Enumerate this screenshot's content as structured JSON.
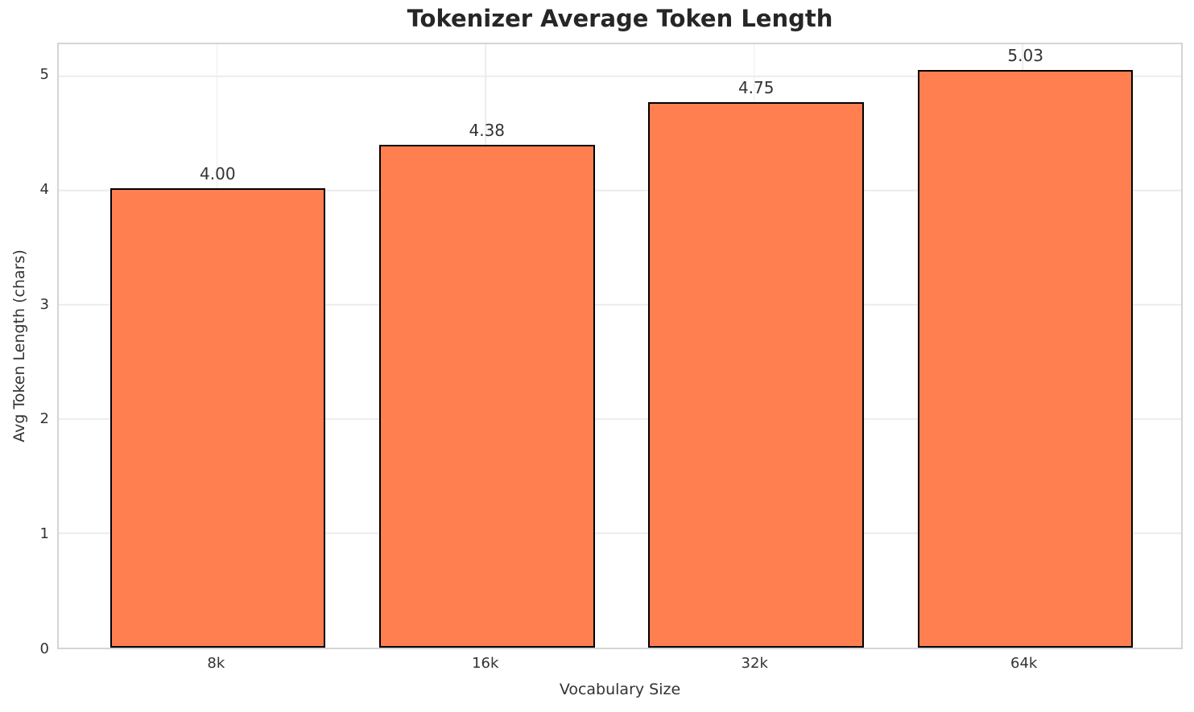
{
  "chart_data": {
    "type": "bar",
    "title": "Tokenizer Average Token Length",
    "xlabel": "Vocabulary Size",
    "ylabel": "Avg Token Length (chars)",
    "categories": [
      "8k",
      "16k",
      "32k",
      "64k"
    ],
    "values": [
      4.0,
      4.38,
      4.75,
      5.03
    ],
    "value_labels": [
      "4.00",
      "4.38",
      "4.75",
      "5.03"
    ],
    "yticks": [
      "0",
      "1",
      "2",
      "3",
      "4",
      "5"
    ],
    "ylim": [
      0,
      5.28
    ],
    "grid": true,
    "legend": "none",
    "colors": {
      "bar_fill": "#FF7F50",
      "bar_edge": "#000000",
      "grid_line": "#ececec",
      "spine": "#d4d4d4",
      "text": "#333333",
      "title_text": "#262626",
      "background": "#ffffff"
    }
  }
}
